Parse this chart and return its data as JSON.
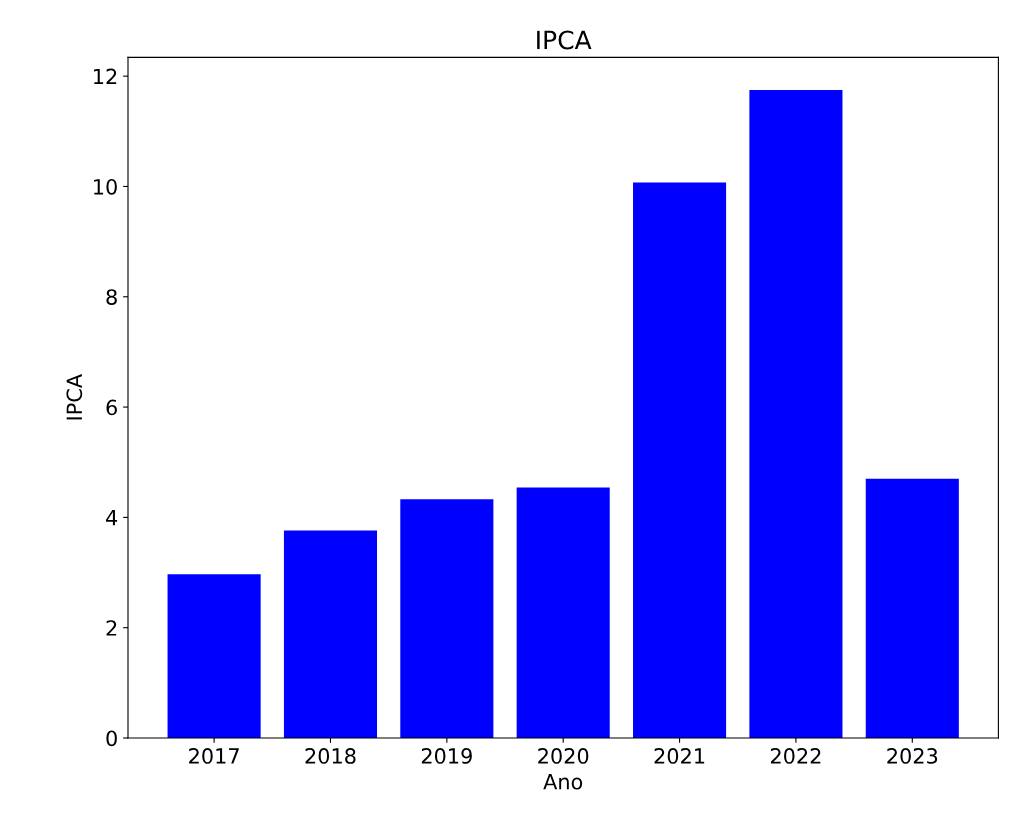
{
  "chart_data": {
    "type": "bar",
    "title": "IPCA",
    "xlabel": "Ano",
    "ylabel": "IPCA",
    "categories": [
      "2017",
      "2018",
      "2019",
      "2020",
      "2021",
      "2022",
      "2023"
    ],
    "values": [
      2.97,
      3.76,
      4.33,
      4.54,
      10.07,
      11.75,
      4.7
    ],
    "color": "#0000ff",
    "ylim": [
      0,
      12.34
    ],
    "yticks": [
      0,
      2,
      4,
      6,
      8,
      10,
      12
    ],
    "grid": false,
    "legend": false
  }
}
